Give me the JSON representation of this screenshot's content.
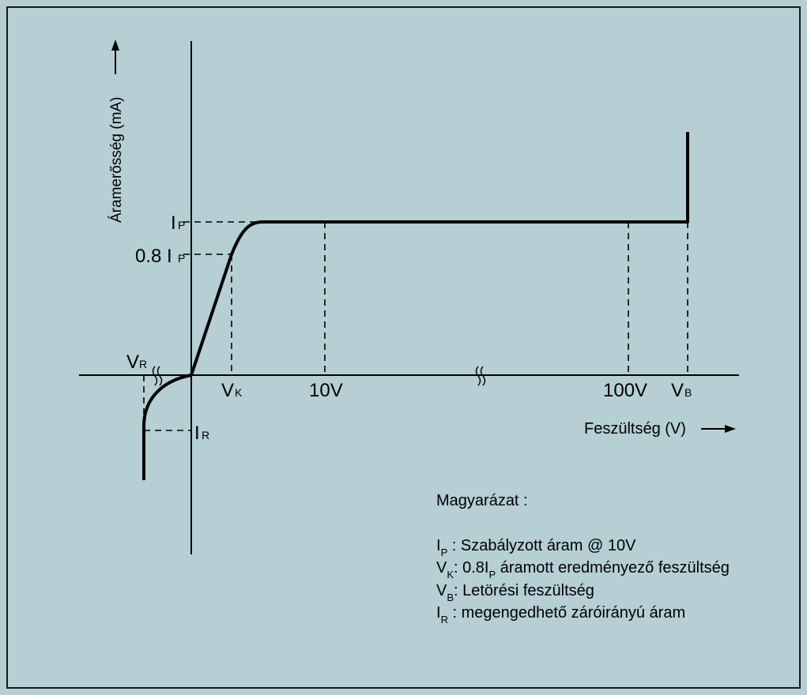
{
  "axes": {
    "y_label": "Áramerősség (mA)",
    "x_label": "Feszültség (V)"
  },
  "labels": {
    "ip_main": "I",
    "ip_sub": "P",
    "ip08_prefix": "0.8 I",
    "ip08_sub": "P",
    "vr_main": "V",
    "vr_sub": "R",
    "vk_main": "V",
    "vk_sub": "K",
    "v10": "10V",
    "v100": "100V",
    "vb_main": "V",
    "vb_sub": "B",
    "ir_main": "I",
    "ir_sub": "R"
  },
  "legend": {
    "title": "Magyarázat :",
    "items": [
      {
        "sym": "I",
        "sub": "P",
        "text": " : Szabályzott áram @ 10V"
      },
      {
        "sym": "V",
        "sub": "K",
        "text": ": 0.8I",
        "sub2": "P",
        "text2": " áramott eredményező feszültség"
      },
      {
        "sym": "V",
        "sub": "B",
        "text": ": Letörési feszültség"
      },
      {
        "sym": "I",
        "sub": "R",
        "text": " : megengedhető záróirányú áram"
      }
    ]
  },
  "colors": {
    "background": "#b6cfd4",
    "line": "#000000"
  }
}
